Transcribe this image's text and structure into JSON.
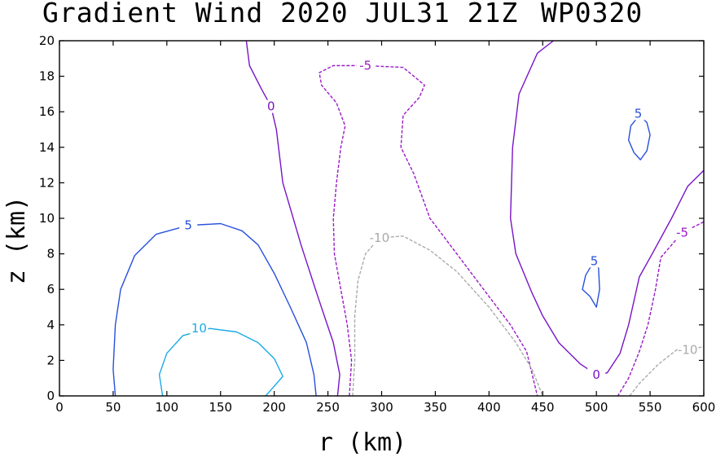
{
  "title": {
    "left": "Gradient Wind 2020 JUL31 21Z",
    "right": "WP0320"
  },
  "chart_data": {
    "type": "contour",
    "xlabel": "r (km)",
    "ylabel": "z (km)",
    "xlim": [
      0,
      600
    ],
    "ylim": [
      0,
      20
    ],
    "xticks": [
      0,
      50,
      100,
      150,
      200,
      250,
      300,
      350,
      400,
      450,
      500,
      550,
      600
    ],
    "yticks": [
      0,
      2,
      4,
      6,
      8,
      10,
      12,
      14,
      16,
      18,
      20
    ],
    "grid": false,
    "contours": [
      {
        "level": "10",
        "color": "#1aaae6",
        "dashed": false,
        "label_at": [
          130,
          3.8
        ],
        "points": [
          [
            96,
            0
          ],
          [
            93,
            1.2
          ],
          [
            100,
            2.4
          ],
          [
            115,
            3.4
          ],
          [
            140,
            3.8
          ],
          [
            165,
            3.6
          ],
          [
            185,
            3.0
          ],
          [
            200,
            2.1
          ],
          [
            208,
            1.1
          ],
          [
            195,
            0.2
          ],
          [
            192,
            0
          ]
        ]
      },
      {
        "level": "5",
        "color": "#2850dc",
        "dashed": false,
        "label_at": [
          120,
          9.6
        ],
        "points": [
          [
            52,
            0
          ],
          [
            50,
            1.5
          ],
          [
            52,
            4
          ],
          [
            57,
            6
          ],
          [
            70,
            7.9
          ],
          [
            90,
            9.1
          ],
          [
            120,
            9.6
          ],
          [
            150,
            9.7
          ],
          [
            170,
            9.3
          ],
          [
            185,
            8.5
          ],
          [
            200,
            6.9
          ],
          [
            215,
            5
          ],
          [
            230,
            3
          ],
          [
            237,
            1.2
          ],
          [
            239,
            0
          ]
        ]
      },
      {
        "level": "5",
        "color": "#2850dc",
        "dashed": false,
        "label_at": [
          539,
          15.9
        ],
        "points": [
          [
            540,
            15.8
          ],
          [
            532,
            15.2
          ],
          [
            530,
            14.4
          ],
          [
            535,
            13.7
          ],
          [
            541,
            13.3
          ],
          [
            547,
            13.8
          ],
          [
            550,
            14.7
          ],
          [
            547,
            15.4
          ],
          [
            540,
            15.8
          ]
        ]
      },
      {
        "level": "5",
        "color": "#2850dc",
        "dashed": false,
        "label_at": [
          498,
          7.6
        ],
        "points": [
          [
            498,
            7.6
          ],
          [
            490,
            6.8
          ],
          [
            487,
            6
          ],
          [
            494,
            5.6
          ],
          [
            500,
            5
          ],
          [
            503,
            6
          ],
          [
            502,
            7.2
          ],
          [
            498,
            7.6
          ]
        ]
      },
      {
        "level": "0",
        "color": "#7814c8",
        "dashed": false,
        "label_at": [
          197,
          16.3
        ],
        "points": [
          [
            174,
            20
          ],
          [
            177,
            18.6
          ],
          [
            188,
            17.3
          ],
          [
            197,
            16.3
          ],
          [
            202,
            15
          ],
          [
            208,
            12
          ],
          [
            225,
            8.5
          ],
          [
            240,
            5.7
          ],
          [
            255,
            3
          ],
          [
            261,
            1.2
          ],
          [
            259,
            0
          ]
        ]
      },
      {
        "level": "0",
        "color": "#7814c8",
        "dashed": false,
        "label_at": [
          500,
          1.2
        ],
        "points": [
          [
            600,
            12.7
          ],
          [
            585,
            11.8
          ],
          [
            570,
            10
          ],
          [
            552,
            8
          ],
          [
            540,
            6.7
          ],
          [
            530,
            4
          ],
          [
            522,
            2.4
          ],
          [
            510,
            1.3
          ],
          [
            500,
            1.2
          ],
          [
            485,
            1.8
          ],
          [
            465,
            3
          ],
          [
            450,
            4.5
          ],
          [
            440,
            5.8
          ],
          [
            425,
            8
          ],
          [
            420,
            10
          ],
          [
            422,
            14
          ],
          [
            428,
            17
          ],
          [
            445,
            19.3
          ],
          [
            460,
            20
          ]
        ]
      },
      {
        "level": "-5",
        "color": "#9b19c8",
        "dashed": true,
        "label_at": [
          285,
          18.6
        ],
        "points": [
          [
            270,
            0
          ],
          [
            272,
            2
          ],
          [
            268,
            4
          ],
          [
            262,
            6
          ],
          [
            256,
            8
          ],
          [
            255,
            10
          ],
          [
            258,
            12
          ],
          [
            262,
            14
          ],
          [
            266,
            15.2
          ],
          [
            258,
            16.5
          ],
          [
            244,
            17.5
          ],
          [
            242,
            18.2
          ],
          [
            255,
            18.6
          ],
          [
            285,
            18.6
          ],
          [
            320,
            18.5
          ],
          [
            340,
            17.5
          ],
          [
            335,
            16.8
          ],
          [
            320,
            15.8
          ],
          [
            318,
            14
          ],
          [
            330,
            12.5
          ],
          [
            345,
            10
          ],
          [
            370,
            8
          ],
          [
            395,
            6
          ],
          [
            420,
            4
          ],
          [
            435,
            2.5
          ],
          [
            445,
            0
          ]
        ]
      },
      {
        "level": "-5",
        "color": "#9b19c8",
        "dashed": true,
        "label_at": [
          580,
          9.2
        ],
        "points": [
          [
            600,
            9.8
          ],
          [
            580,
            9.2
          ],
          [
            560,
            7.8
          ],
          [
            555,
            6
          ],
          [
            548,
            4
          ],
          [
            540,
            2.5
          ],
          [
            530,
            1
          ],
          [
            520,
            0
          ]
        ]
      },
      {
        "level": "-10",
        "color": "#aaaaaa",
        "dashed": true,
        "label_at": [
          298,
          8.9
        ],
        "points": [
          [
            273,
            0
          ],
          [
            275,
            2
          ],
          [
            275,
            4.5
          ],
          [
            278,
            6.5
          ],
          [
            285,
            8
          ],
          [
            298,
            8.9
          ],
          [
            320,
            9
          ],
          [
            345,
            8.2
          ],
          [
            370,
            7
          ],
          [
            400,
            5
          ],
          [
            425,
            3
          ],
          [
            440,
            1.5
          ],
          [
            450,
            0
          ]
        ]
      },
      {
        "level": "-10",
        "color": "#aaaaaa",
        "dashed": true,
        "label_at": [
          585,
          2.6
        ],
        "points": [
          [
            531,
            0
          ],
          [
            540,
            0.7
          ],
          [
            558,
            1.8
          ],
          [
            575,
            2.6
          ],
          [
            595,
            2.7
          ],
          [
            600,
            2.8
          ]
        ]
      }
    ]
  }
}
